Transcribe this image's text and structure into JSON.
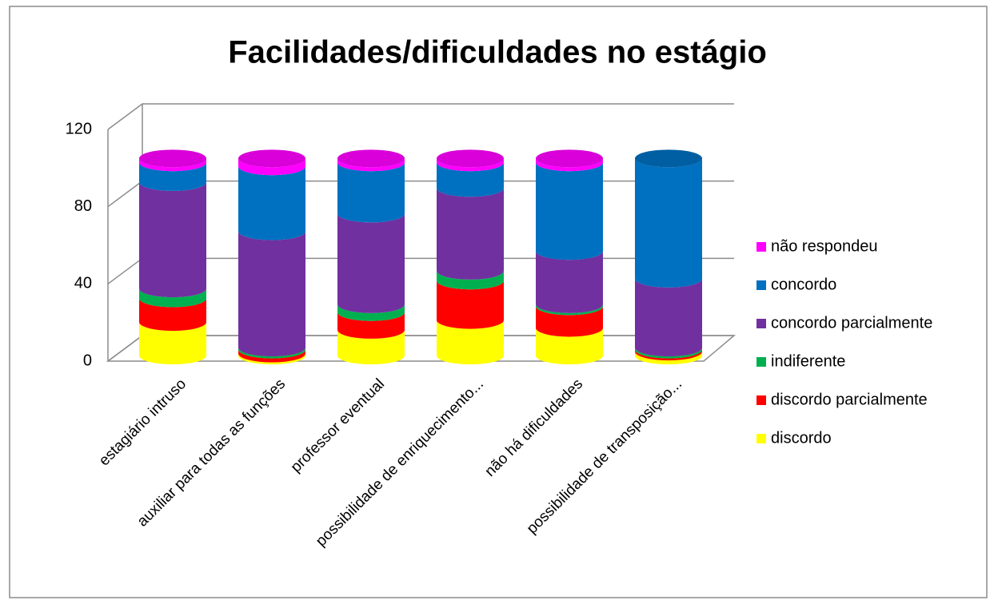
{
  "chart_data": {
    "type": "bar3d_stacked",
    "title": "Facilidades/dificuldades no estágio",
    "categories": [
      "estagiário intruso",
      "auxiliar para todas as funções",
      "professor eventual",
      "possibilidade de enriquecimento...",
      "não há dificuldades",
      "possibilidade de transposição..."
    ],
    "series": [
      {
        "name": "discordo",
        "color": "#ffff00",
        "values": [
          17,
          1,
          13,
          18,
          14,
          2
        ]
      },
      {
        "name": "discordo parcialmente",
        "color": "#ff0000",
        "values": [
          12,
          2,
          9,
          20,
          11,
          1
        ]
      },
      {
        "name": "indiferente",
        "color": "#00b050",
        "values": [
          5,
          1,
          4,
          5,
          1,
          1
        ]
      },
      {
        "name": "concordo parcialmente",
        "color": "#7030a0",
        "values": [
          54,
          59,
          46,
          42,
          27,
          35
        ]
      },
      {
        "name": "concordo",
        "color": "#0070c0",
        "values": [
          10,
          33,
          26,
          13,
          45,
          61
        ]
      },
      {
        "name": "não respondeu",
        "color": "#ff00ff",
        "values": [
          2,
          4,
          2,
          2,
          2,
          0
        ]
      }
    ],
    "ylim": [
      0,
      120
    ],
    "yticks": [
      0,
      40,
      80,
      120
    ],
    "grid": true,
    "legend": "right"
  }
}
